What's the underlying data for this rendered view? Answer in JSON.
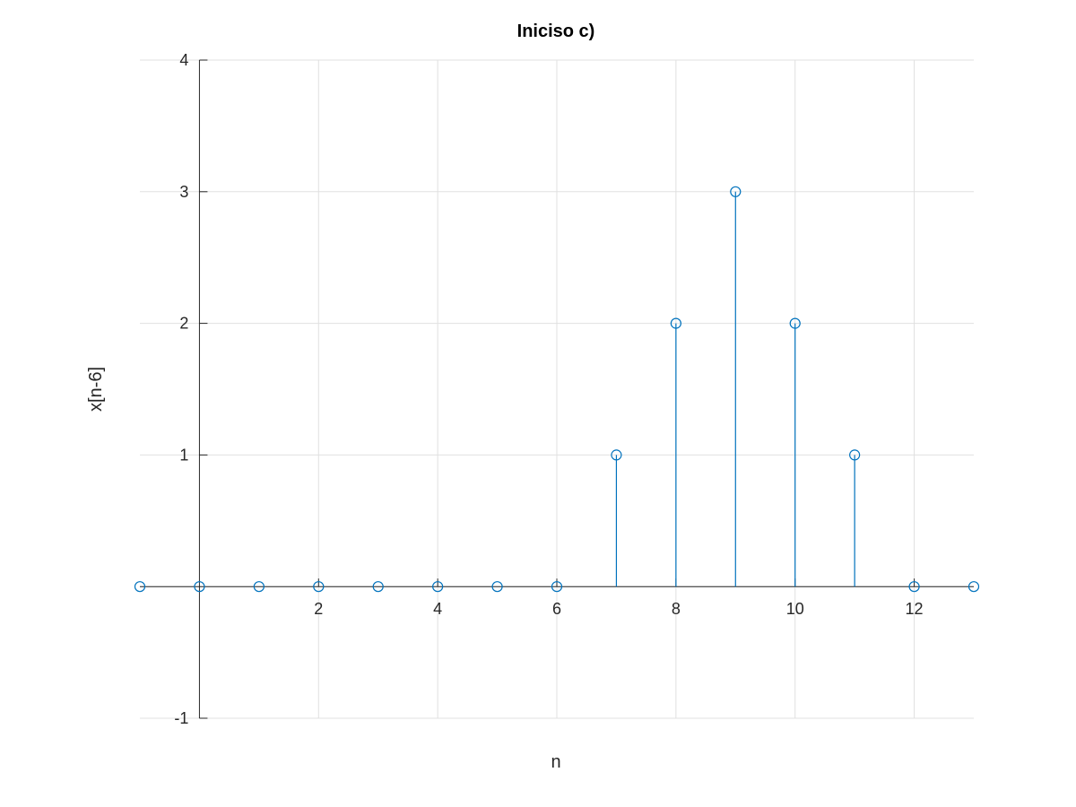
{
  "chart_data": {
    "type": "stem",
    "title": "Iniciso c)",
    "xlabel": "n",
    "ylabel": "x[n-6]",
    "xlim": [
      -1,
      13
    ],
    "ylim": [
      -1,
      4
    ],
    "x_ticks": [
      2,
      4,
      6,
      8,
      10,
      12
    ],
    "y_ticks": [
      -1,
      1,
      2,
      3,
      4
    ],
    "x_tick_labels": [
      "2",
      "4",
      "6",
      "8",
      "10",
      "12"
    ],
    "y_tick_labels": [
      "-1",
      "1",
      "2",
      "3",
      "4"
    ],
    "grid": true,
    "axis_location": "origin",
    "series": [
      {
        "x": [
          -1,
          0,
          1,
          2,
          3,
          4,
          5,
          6,
          7,
          8,
          9,
          10,
          11,
          12,
          13
        ],
        "values": [
          0,
          0,
          0,
          0,
          0,
          0,
          0,
          0,
          1,
          2,
          3,
          2,
          1,
          0,
          0
        ],
        "color": "#0072bd",
        "marker": "circle"
      }
    ],
    "colors": {
      "axis": "#262626",
      "grid": "#e0e0e0"
    }
  }
}
